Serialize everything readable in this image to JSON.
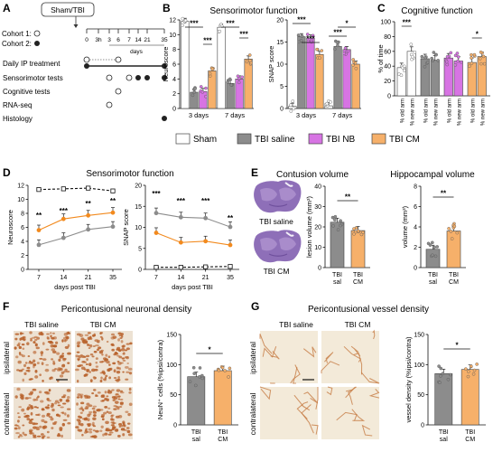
{
  "panels": {
    "A": {
      "letter": "A",
      "top_box": "Sham/TBI",
      "cohort1": "Cohort 1:",
      "cohort2": "Cohort 2:",
      "timeline_ticks": [
        "0",
        "3h",
        "3",
        "6",
        "7",
        "14",
        "21",
        "35"
      ],
      "days_label": "days",
      "rows": [
        "Daily IP treatment",
        "Sensorimotor tests",
        "Cognitive tests",
        "RNA-seq",
        "Histology"
      ]
    },
    "B": {
      "letter": "B",
      "title": "Sensorimotor function"
    },
    "C": {
      "letter": "C",
      "title": "Cognitive function"
    },
    "D": {
      "letter": "D",
      "title": "Sensorimotor function"
    },
    "E": {
      "letter": "E",
      "title1": "Contusion volume",
      "title2": "Hippocampal volume",
      "img_label1": "TBI saline",
      "img_label2": "TBI CM"
    },
    "F": {
      "letter": "F",
      "title": "Pericontusional neuronal density",
      "col1": "TBI saline",
      "col2": "TBI CM",
      "row1": "ipsilateral",
      "row2": "contralateral"
    },
    "G": {
      "letter": "G",
      "title": "Pericontusional vessel density",
      "col1": "TBI saline",
      "col2": "TBI CM",
      "row1": "ipsilateral",
      "row2": "contralateral"
    }
  },
  "legend": [
    "Sham",
    "TBI saline",
    "TBI NB",
    "TBI CM"
  ],
  "colors": {
    "sham": "#ffffff",
    "saline": "#8c8c8c",
    "nb": "#d774e3",
    "cm": "#f6b06a",
    "cm_line": "#f28a1e",
    "histo_purple": "#8e6fb8",
    "ihc_brown": "#b8622c"
  },
  "chart_data": [
    {
      "id": "B1",
      "type": "bar",
      "ylabel": "Neuroscore",
      "ylim": [
        0,
        12
      ],
      "yticks": [
        "0",
        "2",
        "4",
        "6",
        "8",
        "10",
        "12"
      ],
      "categories": [
        "3 days",
        "7 days"
      ],
      "series": [
        {
          "name": "Sham",
          "values": [
            11.8,
            11.0
          ]
        },
        {
          "name": "TBI saline",
          "values": [
            2.2,
            3.4
          ]
        },
        {
          "name": "TBI NB",
          "values": [
            2.3,
            4.0
          ]
        },
        {
          "name": "TBI CM",
          "values": [
            5.1,
            6.7
          ]
        }
      ],
      "significance": [
        "***",
        "***",
        "***",
        "***"
      ]
    },
    {
      "id": "B2",
      "type": "bar",
      "ylabel": "SNAP score",
      "ylim": [
        0,
        20
      ],
      "yticks": [
        "0",
        "5",
        "10",
        "15",
        "20"
      ],
      "categories": [
        "3 days",
        "7 days"
      ],
      "series": [
        {
          "name": "Sham",
          "values": [
            0.5,
            0.6
          ]
        },
        {
          "name": "TBI saline",
          "values": [
            16.2,
            14.0
          ]
        },
        {
          "name": "TBI NB",
          "values": [
            15.9,
            13.3
          ]
        },
        {
          "name": "TBI CM",
          "values": [
            12.2,
            10.0
          ]
        }
      ],
      "significance": [
        "***",
        "***",
        "*",
        "***"
      ]
    },
    {
      "id": "C",
      "type": "bar",
      "ylabel": "% of time",
      "ylim": [
        0,
        100
      ],
      "yticks": [
        "0",
        "20",
        "40",
        "60",
        "80",
        "100"
      ],
      "categories": [
        "% old arm",
        "% new arm",
        "% old arm",
        "% new arm",
        "% old arm",
        "% new arm",
        "% old arm",
        "% new arm"
      ],
      "values": [
        38,
        60,
        50,
        48,
        51,
        47,
        45,
        53
      ],
      "significance": [
        "***",
        "*"
      ]
    },
    {
      "id": "D1",
      "type": "line",
      "ylabel": "Neuroscore",
      "xlabel": "days post TBI",
      "ylim": [
        0,
        12
      ],
      "yticks": [
        "0",
        "2",
        "4",
        "6",
        "8",
        "10",
        "12"
      ],
      "x": [
        7,
        14,
        21,
        35
      ],
      "series": [
        {
          "name": "Sham",
          "values": [
            11.4,
            11.5,
            11.6,
            11.2
          ]
        },
        {
          "name": "TBI saline",
          "values": [
            3.5,
            4.5,
            5.7,
            6.1
          ]
        },
        {
          "name": "TBI CM",
          "values": [
            5.6,
            7.2,
            7.7,
            8.1
          ]
        }
      ],
      "significance": [
        "**",
        "***",
        "**",
        "**"
      ]
    },
    {
      "id": "D2",
      "type": "line",
      "ylabel": "SNAP score",
      "xlabel": "days post TBI",
      "ylim": [
        0,
        20
      ],
      "yticks": [
        "0",
        "5",
        "10",
        "15",
        "20"
      ],
      "x": [
        7,
        14,
        21,
        35
      ],
      "series": [
        {
          "name": "Sham",
          "values": [
            0.5,
            0.5,
            0.6,
            0.7
          ]
        },
        {
          "name": "TBI saline",
          "values": [
            13.4,
            12.4,
            12.2,
            10.1
          ]
        },
        {
          "name": "TBI CM",
          "values": [
            8.7,
            6.4,
            6.7,
            5.8
          ]
        }
      ],
      "significance": [
        "***",
        "***",
        "***",
        "**"
      ]
    },
    {
      "id": "E1",
      "type": "bar",
      "ylabel": "lesion volume (mm³)",
      "ylim": [
        0,
        40
      ],
      "yticks": [
        "0",
        "10",
        "20",
        "30",
        "40"
      ],
      "categories": [
        "TBI sal",
        "TBI CM"
      ],
      "values": [
        22.3,
        18.2
      ],
      "significance": [
        "**"
      ]
    },
    {
      "id": "E2",
      "type": "bar",
      "ylabel": "volume (mm³)",
      "ylim": [
        0,
        8
      ],
      "yticks": [
        "0",
        "2",
        "4",
        "6",
        "8"
      ],
      "categories": [
        "TBI sal",
        "TBI CM"
      ],
      "values": [
        1.8,
        3.6
      ],
      "significance": [
        "**"
      ]
    },
    {
      "id": "F",
      "type": "bar",
      "ylabel": "NeuN⁺ cells (%ipsi/contra)",
      "ylim": [
        0,
        150
      ],
      "yticks": [
        "0",
        "50",
        "100",
        "150"
      ],
      "categories": [
        "TBI sal",
        "TBI CM"
      ],
      "values": [
        80,
        90
      ],
      "significance": [
        "*"
      ]
    },
    {
      "id": "G",
      "type": "bar",
      "ylabel": "vessel density (%ipsi/contra)",
      "ylim": [
        0,
        150
      ],
      "yticks": [
        "0",
        "50",
        "100",
        "150"
      ],
      "categories": [
        "TBI sal",
        "TBI CM"
      ],
      "values": [
        85,
        92
      ],
      "significance": [
        "*"
      ]
    }
  ]
}
